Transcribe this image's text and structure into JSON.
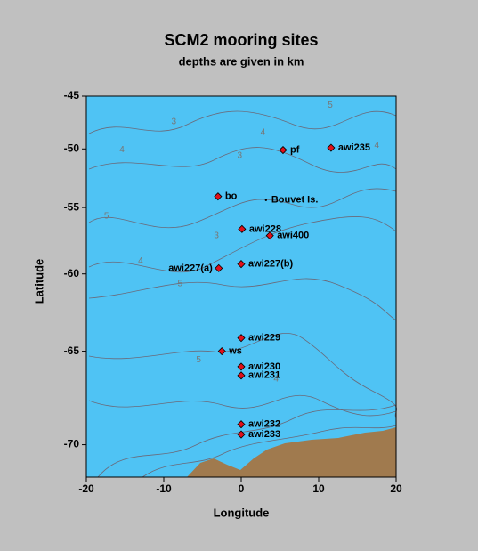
{
  "chart_data": {
    "type": "scatter",
    "projection": "mercator",
    "title": "SCM2 mooring sites",
    "subtitle": "depths are given in km",
    "x_label": "Longitude",
    "y_label": "Latitude",
    "xlim": [
      -20,
      20
    ],
    "ylim": [
      -71.5,
      -45
    ],
    "xticks": [
      -20,
      -10,
      0,
      10,
      20
    ],
    "yticks": [
      -70,
      -65,
      -60,
      -55,
      -50,
      -45
    ],
    "marker_color": "#e0101a",
    "ocean_color": "#4fc3f4",
    "land_color": "#a07a4e",
    "sites": [
      {
        "name": "pf",
        "x": 5.4,
        "y": -50.1
      },
      {
        "name": "awi235",
        "x": 11.6,
        "y": -49.9
      },
      {
        "name": "bo",
        "x": -3.0,
        "y": -54.1
      },
      {
        "name": "awi228",
        "x": 0.1,
        "y": -56.7
      },
      {
        "name": "awi400",
        "x": 3.7,
        "y": -57.2
      },
      {
        "name": "awi227(b)",
        "x": 0.0,
        "y": -59.3
      },
      {
        "name": "awi227(a)",
        "x": -2.9,
        "y": -59.6
      },
      {
        "name": "awi229",
        "x": 0.0,
        "y": -64.2
      },
      {
        "name": "ws",
        "x": -2.5,
        "y": -65.0
      },
      {
        "name": "awi230",
        "x": 0.0,
        "y": -65.9
      },
      {
        "name": "awi231",
        "x": 0.0,
        "y": -66.4
      },
      {
        "name": "awi232",
        "x": 0.0,
        "y": -69.0
      },
      {
        "name": "awi233",
        "x": 0.0,
        "y": -69.5
      }
    ],
    "island": {
      "name": "Bouvet Is.",
      "x": 3.2,
      "y": -54.4
    },
    "contour_labels": [
      {
        "value": 3,
        "x": -8.7,
        "y": -47.5
      },
      {
        "value": 4,
        "x": 2.8,
        "y": -48.5
      },
      {
        "value": 5,
        "x": 11.5,
        "y": -45.9
      },
      {
        "value": 4,
        "x": -15.4,
        "y": -50.1
      },
      {
        "value": 3,
        "x": -0.2,
        "y": -50.6
      },
      {
        "value": 4,
        "x": 17.5,
        "y": -49.7
      },
      {
        "value": 5,
        "x": -17.4,
        "y": -55.7
      },
      {
        "value": 3,
        "x": -3.2,
        "y": -57.2
      },
      {
        "value": 4,
        "x": -13,
        "y": -59.1
      },
      {
        "value": 5,
        "x": -7.9,
        "y": -60.7
      },
      {
        "value": 5,
        "x": -5.5,
        "y": -65.5
      },
      {
        "value": 4,
        "x": 4.5,
        "y": -66.6
      }
    ]
  }
}
